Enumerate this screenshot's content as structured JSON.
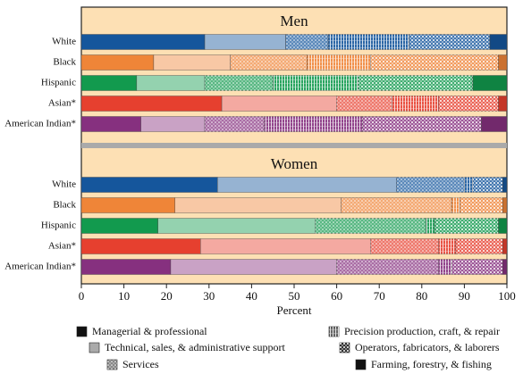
{
  "chart_data": {
    "type": "bar",
    "orientation": "horizontal",
    "stacked": true,
    "xlabel": "Percent",
    "xlim": [
      0,
      100
    ],
    "xticks": [
      0,
      10,
      20,
      30,
      40,
      50,
      60,
      70,
      80,
      90,
      100
    ],
    "categories": [
      "White",
      "Black",
      "Hispanic",
      "Asian*",
      "American Indian*"
    ],
    "category_colors": [
      "#15569c",
      "#ef8538",
      "#129a4e",
      "#e6402f",
      "#86307f"
    ],
    "series": [
      {
        "name": "Managerial & professional",
        "pattern": "solid",
        "color": "#111111"
      },
      {
        "name": "Technical, sales, & administrative support",
        "pattern": "tint",
        "color": "#aaaaaa"
      },
      {
        "name": "Services",
        "pattern": "dots",
        "color": "#888888"
      },
      {
        "name": "Precision production, craft, & repair",
        "pattern": "vlines",
        "color": "#666666"
      },
      {
        "name": "Operators, fabricators, & laborers",
        "pattern": "checks",
        "color": "#333333"
      },
      {
        "name": "Farming, forestry, & fishing",
        "pattern": "solid",
        "color": "#111111"
      }
    ],
    "panels": [
      {
        "title": "Men",
        "series": [
          {
            "values": [
              29,
              17,
              13,
              33,
              14
            ]
          },
          {
            "values": [
              19,
              18,
              16,
              27,
              15
            ]
          },
          {
            "values": [
              10,
              18,
              16,
              13,
              14
            ]
          },
          {
            "values": [
              19,
              15,
              20,
              11,
              23
            ]
          },
          {
            "values": [
              19,
              30,
              27,
              14,
              28
            ]
          },
          {
            "values": [
              4,
              2,
              8,
              2,
              6
            ]
          }
        ]
      },
      {
        "title": "Women",
        "series": [
          {
            "values": [
              32,
              22,
              18,
              28,
              21
            ]
          },
          {
            "values": [
              42,
              39,
              37,
              40,
              39
            ]
          },
          {
            "values": [
              16,
              26,
              26,
              16,
              24
            ]
          },
          {
            "values": [
              2,
              2,
              2,
              4,
              3
            ]
          },
          {
            "values": [
              7,
              10,
              15,
              11,
              12
            ]
          },
          {
            "values": [
              1,
              1,
              2,
              1,
              1
            ]
          }
        ]
      }
    ]
  }
}
